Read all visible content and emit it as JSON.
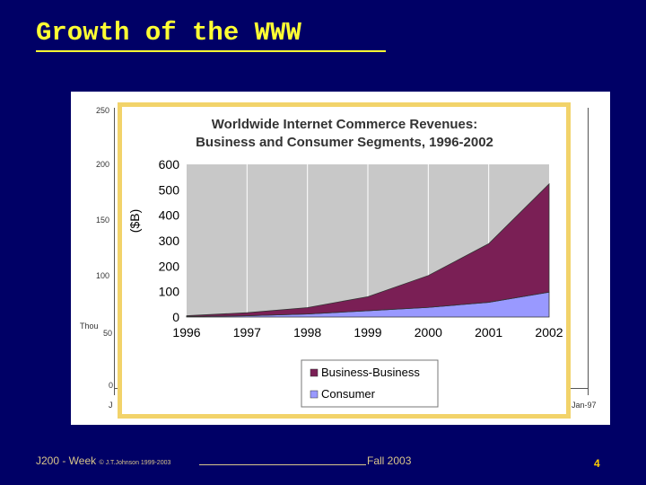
{
  "slide": {
    "title": "Growth of the WWW",
    "footer_left": "J200 - Week",
    "footer_copyright": "© J.T.Johnson 1999-2003",
    "footer_right": "Fall 2003",
    "page_number": "4"
  },
  "background_chart": {
    "y_ticks": [
      "250",
      "200",
      "150",
      "100",
      "50",
      "0"
    ],
    "y_label": "Thou",
    "x_label_left": "J",
    "x_label_right": "Jan-97"
  },
  "chart_data": {
    "type": "area",
    "title_line1": "Worldwide Internet Commerce Revenues:",
    "title_line2": "Business and Consumer Segments, 1996-2002",
    "ylabel": "($B)",
    "xlabel": "",
    "categories": [
      "1996",
      "1997",
      "1998",
      "1999",
      "2000",
      "2001",
      "2002"
    ],
    "y_ticks": [
      "0",
      "100",
      "200",
      "300",
      "400",
      "500",
      "600"
    ],
    "ylim": [
      0,
      600
    ],
    "stacked": true,
    "grid": "vertical",
    "legend": "bottom",
    "series": [
      {
        "name": "Consumer",
        "color": "#9999ff",
        "values": [
          2,
          5,
          12,
          25,
          38,
          58,
          98
        ]
      },
      {
        "name": "Business-Business",
        "color": "#7a1f55",
        "values": [
          3,
          12,
          25,
          55,
          125,
          230,
          425
        ]
      }
    ]
  }
}
